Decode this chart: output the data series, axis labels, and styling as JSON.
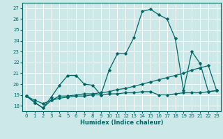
{
  "title": "",
  "xlabel": "Humidex (Indice chaleur)",
  "bg_color": "#cce8e8",
  "grid_color": "#ffffff",
  "line_color": "#006666",
  "xlim": [
    -0.5,
    23.5
  ],
  "ylim": [
    17.5,
    27.5
  ],
  "xticks": [
    0,
    1,
    2,
    3,
    4,
    5,
    6,
    7,
    8,
    9,
    10,
    11,
    12,
    13,
    14,
    15,
    16,
    17,
    18,
    19,
    20,
    21,
    22,
    23
  ],
  "yticks": [
    18,
    19,
    20,
    21,
    22,
    23,
    24,
    25,
    26,
    27
  ],
  "series0_x": [
    0,
    1,
    2,
    3,
    4,
    5,
    6,
    7,
    8,
    9,
    10,
    11,
    12,
    13,
    14,
    15,
    16,
    17,
    18,
    19,
    20,
    21,
    22,
    23
  ],
  "series0_y": [
    18.9,
    18.3,
    17.8,
    18.8,
    19.9,
    20.8,
    20.8,
    20.0,
    19.9,
    19.0,
    21.3,
    22.8,
    22.8,
    24.3,
    26.7,
    26.9,
    26.4,
    26.0,
    24.2,
    19.4,
    23.0,
    21.9,
    19.3,
    19.4
  ],
  "series1_x": [
    0,
    1,
    2,
    3,
    4,
    5,
    6,
    7,
    8,
    9,
    10,
    11,
    12,
    13,
    14,
    15,
    16,
    17,
    18,
    19,
    20,
    21,
    22,
    23
  ],
  "series1_y": [
    18.9,
    18.3,
    17.8,
    18.5,
    18.9,
    18.9,
    19.0,
    19.1,
    19.1,
    19.2,
    19.3,
    19.5,
    19.6,
    19.8,
    20.0,
    20.2,
    20.4,
    20.6,
    20.8,
    21.0,
    21.3,
    21.5,
    21.7,
    19.4
  ],
  "series2_x": [
    0,
    1,
    2,
    3,
    4,
    5,
    6,
    7,
    8,
    9,
    10,
    11,
    12,
    13,
    14,
    15,
    16,
    17,
    18,
    19,
    20,
    21,
    22,
    23
  ],
  "series2_y": [
    18.9,
    18.5,
    18.2,
    18.5,
    18.7,
    18.8,
    18.9,
    18.9,
    19.0,
    19.0,
    19.1,
    19.1,
    19.2,
    19.2,
    19.3,
    19.3,
    19.0,
    19.0,
    19.1,
    19.2,
    19.2,
    19.2,
    19.3,
    19.4
  ]
}
